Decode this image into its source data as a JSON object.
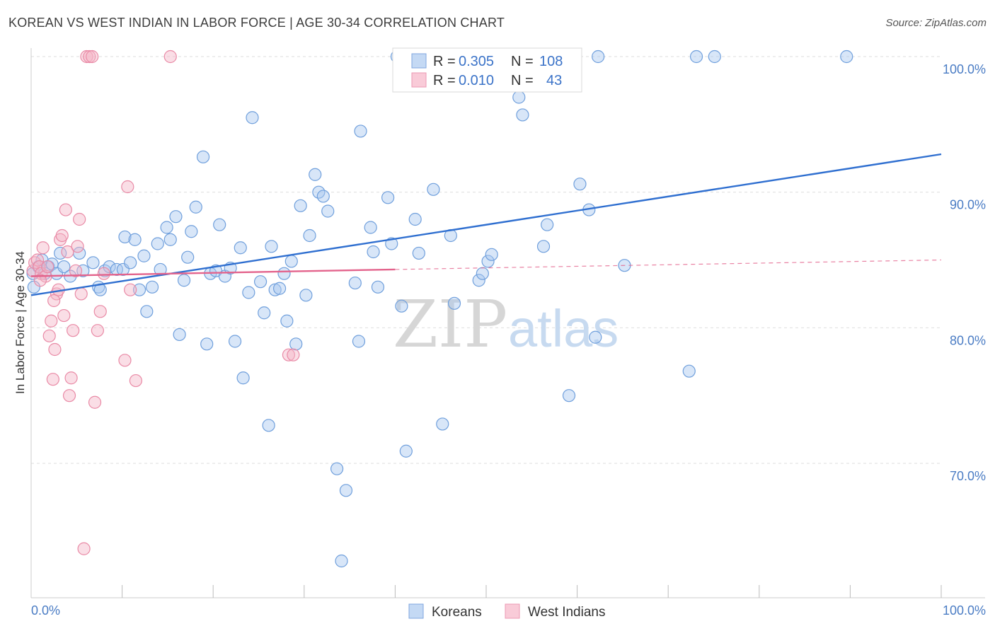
{
  "title": "KOREAN VS WEST INDIAN IN LABOR FORCE | AGE 30-34 CORRELATION CHART",
  "source": "Source: ZipAtlas.com",
  "watermark": {
    "zip": "ZIP",
    "atlas": "atlas"
  },
  "legend": {
    "rows": [
      {
        "r_label": "R =",
        "r_value": "0.305",
        "n_label": "N =",
        "n_value": "108",
        "color": "#a9c8ef"
      },
      {
        "r_label": "R =",
        "r_value": "0.010",
        "n_label": "N =",
        "n_value": "43",
        "color": "#f5b6c8"
      }
    ]
  },
  "chart_data": {
    "type": "scatter",
    "title": "KOREAN VS WEST INDIAN IN LABOR FORCE | AGE 30-34 CORRELATION CHART",
    "xlabel": "",
    "ylabel": "In Labor Force | Age 30-34",
    "xlim": [
      0,
      100
    ],
    "ylim": [
      60,
      105
    ],
    "x_tick_labels": [
      "0.0%",
      "100.0%"
    ],
    "y_ticks": [
      70,
      80,
      90,
      100
    ],
    "y_tick_labels": [
      "70.0%",
      "80.0%",
      "90.0%",
      "100.0%"
    ],
    "grid": true,
    "legend_position": "bottom-center",
    "series": [
      {
        "name": "Koreans",
        "color": "#a9c8ef",
        "stroke": "#6f9fdc",
        "trend": {
          "x": [
            0,
            100
          ],
          "y": [
            82.4,
            92.8
          ],
          "color": "#2f6fd0"
        },
        "points": [
          [
            0.3,
            83
          ],
          [
            0.8,
            84.5
          ],
          [
            1.2,
            85
          ],
          [
            1.5,
            84
          ],
          [
            1.9,
            84.5
          ],
          [
            2.3,
            84.7
          ],
          [
            2.8,
            84
          ],
          [
            3.2,
            85.5
          ],
          [
            3.6,
            84.5
          ],
          [
            4.3,
            83.8
          ],
          [
            5.3,
            85.5
          ],
          [
            5.7,
            84.2
          ],
          [
            6.8,
            84.8
          ],
          [
            7.4,
            83
          ],
          [
            7.6,
            82.8
          ],
          [
            8.1,
            84.2
          ],
          [
            8.6,
            84.5
          ],
          [
            9.4,
            84.3
          ],
          [
            10.1,
            84.3
          ],
          [
            10.3,
            86.7
          ],
          [
            10.9,
            84.8
          ],
          [
            11.4,
            86.5
          ],
          [
            11.9,
            82.8
          ],
          [
            12.4,
            85.3
          ],
          [
            12.7,
            81.2
          ],
          [
            13.3,
            83
          ],
          [
            13.9,
            86.2
          ],
          [
            14.2,
            84.3
          ],
          [
            14.9,
            87.4
          ],
          [
            15.3,
            86.5
          ],
          [
            15.9,
            88.2
          ],
          [
            16.3,
            79.5
          ],
          [
            16.8,
            83.5
          ],
          [
            17.2,
            85.2
          ],
          [
            17.6,
            87.1
          ],
          [
            18.1,
            88.9
          ],
          [
            18.9,
            92.6
          ],
          [
            19.3,
            78.8
          ],
          [
            19.7,
            84
          ],
          [
            20.3,
            84.2
          ],
          [
            20.7,
            87.6
          ],
          [
            21.3,
            83.8
          ],
          [
            21.9,
            84.4
          ],
          [
            22.4,
            79
          ],
          [
            23.0,
            85.9
          ],
          [
            23.3,
            76.3
          ],
          [
            23.9,
            82.6
          ],
          [
            24.3,
            95.5
          ],
          [
            25.2,
            83.4
          ],
          [
            25.6,
            81.1
          ],
          [
            26.1,
            72.8
          ],
          [
            26.4,
            86
          ],
          [
            26.8,
            82.8
          ],
          [
            27.3,
            82.9
          ],
          [
            27.8,
            84
          ],
          [
            28.1,
            80.5
          ],
          [
            28.6,
            84.9
          ],
          [
            29.1,
            78.8
          ],
          [
            29.6,
            89
          ],
          [
            30.2,
            82.4
          ],
          [
            30.6,
            86.8
          ],
          [
            31.2,
            91.3
          ],
          [
            31.6,
            90
          ],
          [
            32.1,
            89.7
          ],
          [
            32.6,
            88.6
          ],
          [
            33.6,
            69.6
          ],
          [
            34.1,
            62.8
          ],
          [
            34.6,
            68
          ],
          [
            35.6,
            83.3
          ],
          [
            36.0,
            79
          ],
          [
            36.2,
            94.5
          ],
          [
            37.3,
            87.4
          ],
          [
            37.6,
            85.6
          ],
          [
            38.1,
            83
          ],
          [
            39.2,
            89.6
          ],
          [
            39.6,
            86.2
          ],
          [
            40.2,
            100
          ],
          [
            40.7,
            81.6
          ],
          [
            41.2,
            70.9
          ],
          [
            42.2,
            88
          ],
          [
            42.6,
            85.5
          ],
          [
            44.2,
            90.2
          ],
          [
            45.2,
            72.9
          ],
          [
            46.1,
            86.8
          ],
          [
            46.5,
            81.8
          ],
          [
            47.3,
            100
          ],
          [
            49.2,
            83.5
          ],
          [
            49.6,
            84
          ],
          [
            50.2,
            84.9
          ],
          [
            50.6,
            85.4
          ],
          [
            52.0,
            98
          ],
          [
            53.2,
            100
          ],
          [
            53.6,
            97
          ],
          [
            54.0,
            95.7
          ],
          [
            55.5,
            100
          ],
          [
            56.3,
            86
          ],
          [
            56.7,
            87.6
          ],
          [
            59.1,
            75
          ],
          [
            60.3,
            90.6
          ],
          [
            61.3,
            88.7
          ],
          [
            62.0,
            79.3
          ],
          [
            62.3,
            100
          ],
          [
            65.2,
            84.6
          ],
          [
            72.3,
            76.8
          ],
          [
            73.1,
            100
          ],
          [
            75.1,
            100
          ],
          [
            89.6,
            100
          ],
          [
            0.2,
            84
          ]
        ]
      },
      {
        "name": "West Indians",
        "color": "#f5b6c8",
        "stroke": "#e98aa6",
        "trend": {
          "x": [
            0,
            40
          ],
          "y": [
            83.8,
            84.3
          ],
          "dash_to": [
            100,
            85.0
          ],
          "color": "#e3638c"
        },
        "points": [
          [
            0.2,
            84.2
          ],
          [
            0.4,
            84.8
          ],
          [
            0.7,
            85
          ],
          [
            0.9,
            84.5
          ],
          [
            1.1,
            84
          ],
          [
            1.3,
            85.9
          ],
          [
            1.6,
            83.8
          ],
          [
            1.8,
            84.5
          ],
          [
            2.0,
            79.4
          ],
          [
            2.2,
            80.5
          ],
          [
            2.4,
            76.2
          ],
          [
            2.6,
            78.4
          ],
          [
            2.8,
            82.5
          ],
          [
            3.0,
            82.8
          ],
          [
            3.2,
            86.5
          ],
          [
            3.4,
            86.8
          ],
          [
            3.6,
            80.9
          ],
          [
            3.8,
            88.7
          ],
          [
            4.0,
            85.6
          ],
          [
            4.2,
            75
          ],
          [
            4.4,
            76.3
          ],
          [
            4.6,
            79.8
          ],
          [
            4.9,
            84.2
          ],
          [
            5.1,
            86
          ],
          [
            5.3,
            88
          ],
          [
            5.5,
            82.5
          ],
          [
            5.8,
            63.7
          ],
          [
            6.1,
            100
          ],
          [
            6.4,
            100
          ],
          [
            6.7,
            100
          ],
          [
            7.0,
            74.5
          ],
          [
            7.3,
            79.8
          ],
          [
            7.6,
            81.2
          ],
          [
            8.0,
            84
          ],
          [
            10.3,
            77.6
          ],
          [
            10.6,
            90.4
          ],
          [
            10.9,
            82.8
          ],
          [
            11.5,
            76.1
          ],
          [
            15.3,
            100
          ],
          [
            28.3,
            78
          ],
          [
            28.8,
            78
          ],
          [
            1.0,
            83.5
          ],
          [
            2.5,
            82
          ]
        ]
      }
    ]
  }
}
